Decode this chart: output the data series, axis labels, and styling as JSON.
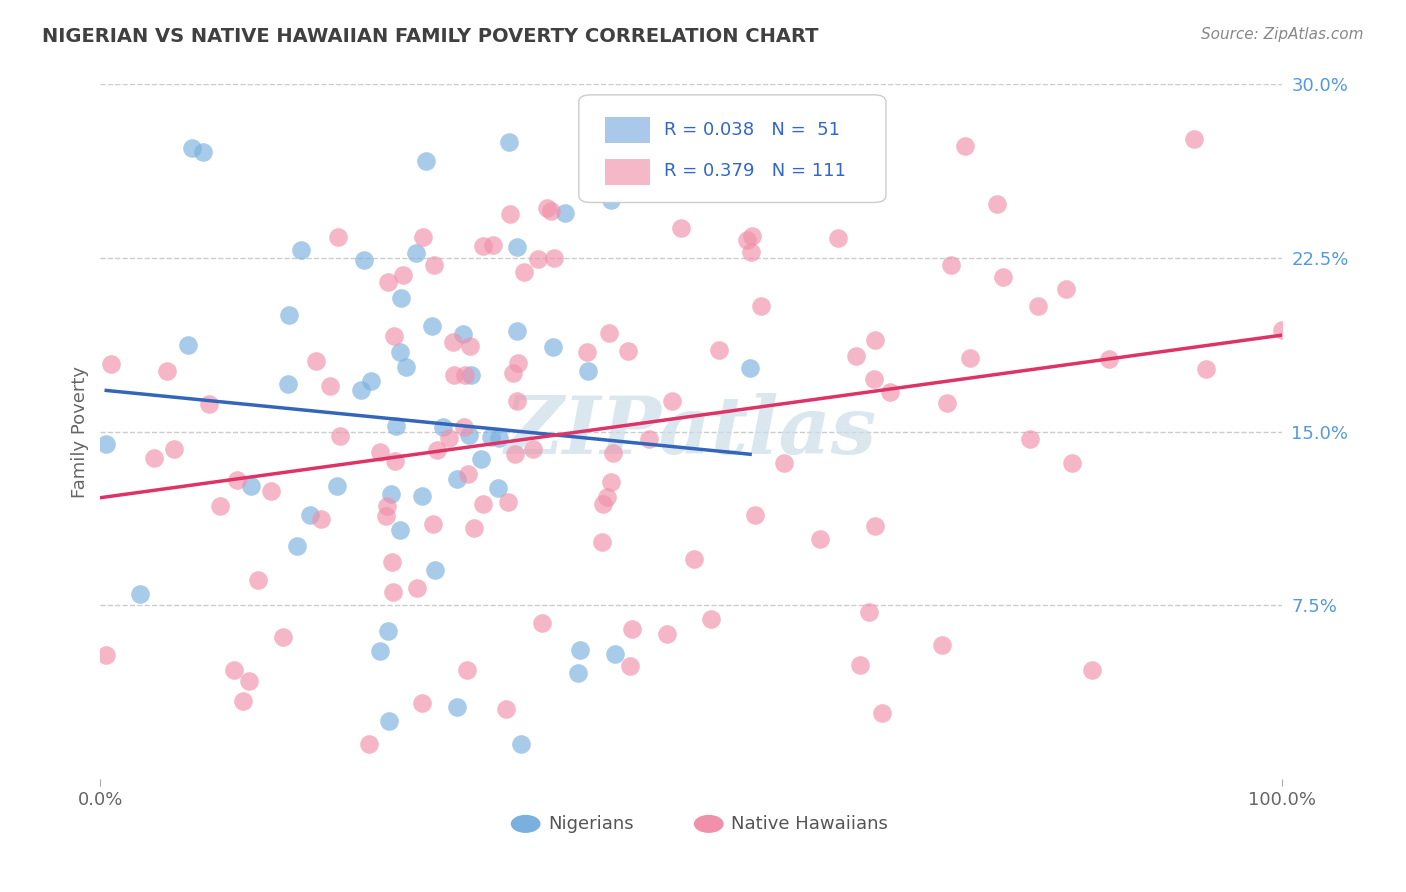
{
  "title": "NIGERIAN VS NATIVE HAWAIIAN FAMILY POVERTY CORRELATION CHART",
  "source": "Source: ZipAtlas.com",
  "ylabel": "Family Poverty",
  "xmin": 0.0,
  "xmax": 1.0,
  "ymin": 0.0,
  "ymax": 0.3,
  "ytick_positions": [
    0.075,
    0.15,
    0.225,
    0.3
  ],
  "ytick_labels": [
    "7.5%",
    "15.0%",
    "22.5%",
    "30.0%"
  ],
  "nigerian_color": "#7ab0de",
  "hawaiian_color": "#f090aa",
  "nigerian_line_color": "#3366bb",
  "hawaiian_line_color": "#dd3366",
  "nigerian_legend_color": "#aac8ea",
  "hawaiian_legend_color": "#f4b8c8",
  "background_color": "#ffffff",
  "grid_color": "#cccccc",
  "title_color": "#404040",
  "source_color": "#888888",
  "watermark_text": "ZIPatlas",
  "watermark_color": "#ccdde8",
  "ytick_color": "#5599dd",
  "legend_text_color": "#3366cc",
  "nigerian_R": 0.038,
  "nigerian_N": 51,
  "hawaiian_R": 0.379,
  "hawaiian_N": 111
}
